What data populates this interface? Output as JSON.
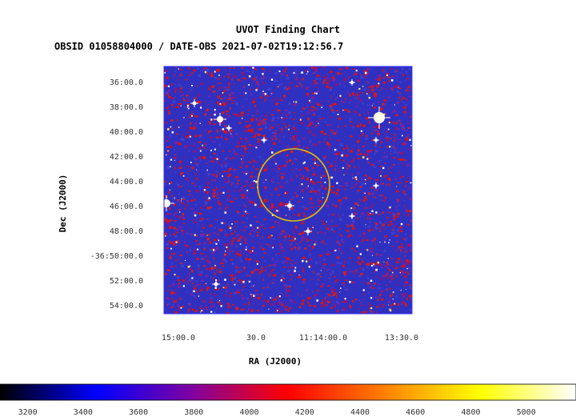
{
  "chart_data": {
    "type": "heatmap",
    "title": "UVOT Finding Chart",
    "subtitle": "OBSID 01058804000 / DATE-OBS 2021-07-02T19:12:56.7",
    "xlabel": "RA (J2000)",
    "ylabel": "Dec (J2000)",
    "x_ticks": [
      "15:00.0",
      "30.0",
      "11:14:00.0",
      "13:30.0"
    ],
    "y_ticks": [
      "36:00.0",
      "38:00.0",
      "40:00.0",
      "42:00.0",
      "44:00.0",
      "46:00.0",
      "48:00.0",
      "-36:50:00.0",
      "52:00.0",
      "54:00.0"
    ],
    "colorbar": {
      "ticks": [
        3200,
        3400,
        3600,
        3800,
        4000,
        4200,
        4400,
        4600,
        4800,
        5000
      ],
      "range": [
        3100,
        5180
      ],
      "colormap": [
        "#000000",
        "#0000ff",
        "#8000a0",
        "#ff0000",
        "#ff8000",
        "#ffff00",
        "#ffffff"
      ]
    },
    "colors": {
      "image_background": "#3030c0",
      "noise_red": "#e01010",
      "noise_purple": "#8020a0",
      "star": "#ffffff",
      "circle": "#e0c000",
      "frame": "#3030ff"
    },
    "grid": false
  }
}
